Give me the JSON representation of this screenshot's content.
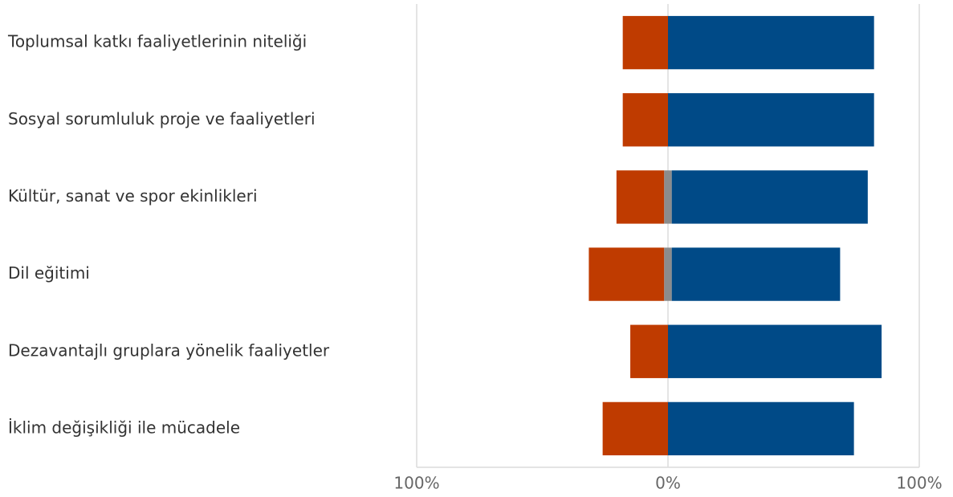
{
  "chart_data": {
    "type": "diverging_bar",
    "categories": [
      "Toplumsal katkı faaliyetlerinin niteliği",
      "Sosyal sorumluluk proje ve faaliyetleri",
      "Kültür, sanat ve spor ekinlikleri",
      "Dil eğitimi",
      "Dezavantajlı gruplara yönelik faaliyetler",
      "İklim değişikliği ile mücadele"
    ],
    "series": [
      {
        "color": "#bf3b00",
        "values": [
          -18,
          -18,
          -19,
          -30,
          -15,
          -26
        ]
      },
      {
        "color": "#8c8c8c",
        "values": [
          0,
          0,
          3,
          3,
          0,
          0
        ]
      },
      {
        "color": "#004a87",
        "values": [
          82,
          82,
          78,
          67,
          85,
          74
        ]
      }
    ],
    "xlim": [
      -100,
      100
    ],
    "xticks": [
      {
        "value": -100,
        "label": "100%"
      },
      {
        "value": 0,
        "label": "0%"
      },
      {
        "value": 100,
        "label": "100%"
      }
    ],
    "grid": true
  }
}
